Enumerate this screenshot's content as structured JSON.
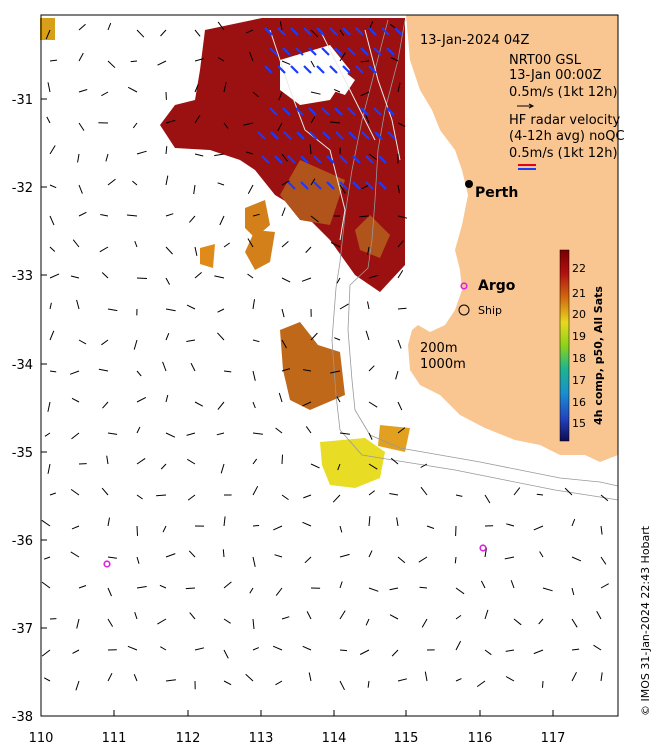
{
  "map": {
    "lon_ticks": [
      "110",
      "111",
      "112",
      "113",
      "114",
      "115",
      "116",
      "117"
    ],
    "lat_ticks": [
      "-31",
      "-32",
      "-33",
      "-34",
      "-35",
      "-36",
      "-37",
      "-38"
    ]
  },
  "legend": {
    "datetime": "13-Jan-2024 04Z",
    "gsl_title": "NRT00 GSL",
    "gsl_date": "13-Jan 00:00Z",
    "gsl_scale": "0.5m/s (1kt 12h)",
    "hf_title": "HF radar velocity",
    "hf_sub": "(4-12h avg) noQC",
    "hf_scale": "0.5m/s (1kt 12h)",
    "argo": "Argo",
    "ship": "Ship",
    "isobath_200": "200m",
    "isobath_1000": "1000m",
    "city": "Perth"
  },
  "colorbar": {
    "label": "4h comp, p50, All Sats",
    "ticks": [
      "22",
      "21",
      "20",
      "19",
      "18",
      "17",
      "16",
      "15"
    ],
    "colors": {
      "c22": "#9a0d0d",
      "c21": "#d26a10",
      "c20": "#e8d820",
      "c19": "#8ed21a",
      "c18": "#1fb58c",
      "c17": "#1a8fd0",
      "c16": "#2344c0",
      "c15": "#1a1470"
    }
  },
  "credit": "© IMOS 31-Jan-2024 22:43 Hobart",
  "colors": {
    "land": "#f9c591",
    "sst_dark": "#9b1010",
    "sst_mid": "#b0541c",
    "sst_warm": "#d4801a",
    "sst_yellow": "#e8dc24",
    "hf_arrow": "#1a3cff",
    "argo": "#e020e0"
  }
}
